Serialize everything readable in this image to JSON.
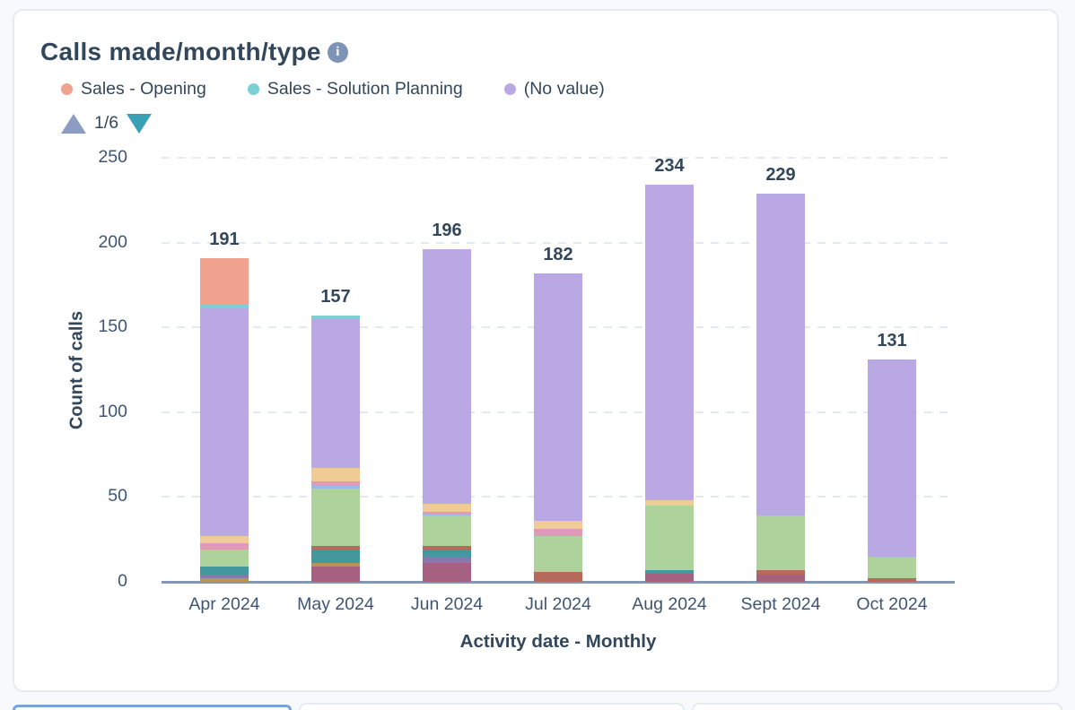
{
  "card": {
    "title": "Calls made/month/type"
  },
  "icons": {
    "info": "i"
  },
  "legend": {
    "items": [
      {
        "label": "Sales - Opening",
        "color": "#f0a28f"
      },
      {
        "label": "Sales - Solution Planning",
        "color": "#7bd0d4"
      },
      {
        "label": "(No value)",
        "color": "#b9a8e4"
      }
    ],
    "pagination": {
      "page_indicator": "1/6",
      "up_arrow_color": "#8c9cc3",
      "down_arrow_color": "#3aa1b5"
    }
  },
  "chart_data": {
    "type": "bar",
    "stacked": true,
    "title": "Calls made/month/type",
    "xlabel": "Activity date - Monthly",
    "ylabel": "Count of calls",
    "ylim": [
      0,
      250
    ],
    "yticks": [
      0,
      50,
      100,
      150,
      200,
      250
    ],
    "grid": "horizontal dashed",
    "legend_position": "top",
    "categories": [
      "Apr 2024",
      "May 2024",
      "Jun 2024",
      "Jul 2024",
      "Aug 2024",
      "Sept 2024",
      "Oct 2024"
    ],
    "totals": [
      191,
      157,
      196,
      182,
      234,
      229,
      131
    ],
    "palette": {
      "salmon": "#f0a28f",
      "light_teal": "#7bd0d4",
      "purple": "#b9a8e4",
      "tan": "#f0cb96",
      "pink": "#e298b7",
      "green": "#aed29b",
      "dark_teal": "#43989d",
      "slate_purple": "#8779ae",
      "gold_brown": "#bb9257",
      "maroon": "#a5617f",
      "red_brown": "#b56a5b",
      "light_blue": "#98b9ea"
    },
    "named_series": {
      "salmon": "Sales - Opening",
      "light_teal": "Sales - Solution Planning",
      "purple": "(No value)"
    },
    "bars": [
      {
        "category": "Apr 2024",
        "total": 191,
        "segments_bottom_to_top": [
          {
            "color": "gold_brown",
            "value": 2
          },
          {
            "color": "slate_purple",
            "value": 2
          },
          {
            "color": "dark_teal",
            "value": 5
          },
          {
            "color": "green",
            "value": 10
          },
          {
            "color": "pink",
            "value": 4
          },
          {
            "color": "tan",
            "value": 4
          },
          {
            "color": "purple",
            "value": 134
          },
          {
            "color": "light_teal",
            "value": 3
          },
          {
            "color": "salmon",
            "value": 27
          }
        ]
      },
      {
        "category": "May 2024",
        "total": 157,
        "segments_bottom_to_top": [
          {
            "color": "maroon",
            "value": 9
          },
          {
            "color": "gold_brown",
            "value": 2
          },
          {
            "color": "dark_teal",
            "value": 8
          },
          {
            "color": "red_brown",
            "value": 2
          },
          {
            "color": "green",
            "value": 34
          },
          {
            "color": "light_blue",
            "value": 2
          },
          {
            "color": "pink",
            "value": 2
          },
          {
            "color": "tan",
            "value": 8
          },
          {
            "color": "purple",
            "value": 88
          },
          {
            "color": "light_teal",
            "value": 2
          }
        ]
      },
      {
        "category": "Jun 2024",
        "total": 196,
        "segments_bottom_to_top": [
          {
            "color": "maroon",
            "value": 11
          },
          {
            "color": "slate_purple",
            "value": 4
          },
          {
            "color": "dark_teal",
            "value": 4
          },
          {
            "color": "red_brown",
            "value": 2
          },
          {
            "color": "green",
            "value": 18
          },
          {
            "color": "light_blue",
            "value": 1
          },
          {
            "color": "pink",
            "value": 1
          },
          {
            "color": "tan",
            "value": 5
          },
          {
            "color": "purple",
            "value": 150
          }
        ]
      },
      {
        "category": "Jul 2024",
        "total": 182,
        "segments_bottom_to_top": [
          {
            "color": "red_brown",
            "value": 6
          },
          {
            "color": "green",
            "value": 21
          },
          {
            "color": "pink",
            "value": 4
          },
          {
            "color": "tan",
            "value": 5
          },
          {
            "color": "purple",
            "value": 146
          }
        ]
      },
      {
        "category": "Aug 2024",
        "total": 234,
        "segments_bottom_to_top": [
          {
            "color": "maroon",
            "value": 5
          },
          {
            "color": "dark_teal",
            "value": 2
          },
          {
            "color": "green",
            "value": 38
          },
          {
            "color": "tan",
            "value": 3
          },
          {
            "color": "purple",
            "value": 186
          }
        ]
      },
      {
        "category": "Sept 2024",
        "total": 229,
        "segments_bottom_to_top": [
          {
            "color": "maroon",
            "value": 4
          },
          {
            "color": "red_brown",
            "value": 3
          },
          {
            "color": "green",
            "value": 32
          },
          {
            "color": "purple",
            "value": 190
          }
        ]
      },
      {
        "category": "Oct 2024",
        "total": 131,
        "segments_bottom_to_top": [
          {
            "color": "red_brown",
            "value": 2
          },
          {
            "color": "green",
            "value": 13
          },
          {
            "color": "purple",
            "value": 116
          }
        ]
      }
    ]
  }
}
